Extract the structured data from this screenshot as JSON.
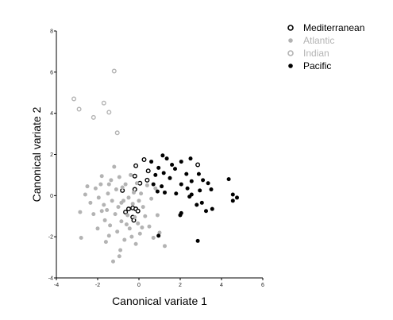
{
  "chart_data": {
    "type": "scatter",
    "xlabel": "Canonical variate 1",
    "ylabel": "Canonical variate 2",
    "xlim": [
      -4,
      6
    ],
    "ylim": [
      -4,
      8
    ],
    "xticks": [
      -4,
      -2,
      0,
      2,
      4,
      6
    ],
    "yticks": [
      -4,
      -2,
      0,
      2,
      4,
      6,
      8
    ],
    "legend_position": "top-right",
    "series": [
      {
        "name": "Mediterranean",
        "marker": "open-circle",
        "color": "#000000",
        "legend_color": "#000000",
        "points": [
          [
            0.25,
            1.75
          ],
          [
            -0.15,
            1.45
          ],
          [
            0.45,
            1.2
          ],
          [
            -0.2,
            0.95
          ],
          [
            0.4,
            0.75
          ],
          [
            0.05,
            0.6
          ],
          [
            -0.8,
            0.25
          ],
          [
            -0.2,
            0.3
          ],
          [
            2.85,
            1.5
          ],
          [
            -0.5,
            -0.65
          ],
          [
            -0.3,
            -0.6
          ],
          [
            -0.15,
            -0.65
          ],
          [
            -0.05,
            -0.75
          ],
          [
            -0.65,
            -0.8
          ],
          [
            -0.3,
            -1.05
          ],
          [
            -0.25,
            -1.2
          ]
        ]
      },
      {
        "name": "Atlantic",
        "marker": "filled-circle",
        "color": "#b3b3b3",
        "legend_color": "#b3b3b3",
        "points": [
          [
            -2.85,
            -0.8
          ],
          [
            -2.8,
            -2.05
          ],
          [
            -2.6,
            0.05
          ],
          [
            -2.35,
            -0.35
          ],
          [
            -2.2,
            -0.9
          ],
          [
            -2.1,
            0.35
          ],
          [
            -2.0,
            -1.6
          ],
          [
            -1.95,
            -0.1
          ],
          [
            -1.85,
            0.55
          ],
          [
            -1.8,
            0.95
          ],
          [
            -1.7,
            -0.45
          ],
          [
            -1.65,
            -1.2
          ],
          [
            -1.6,
            -2.25
          ],
          [
            -1.55,
            -0.7
          ],
          [
            -1.5,
            0.1
          ],
          [
            -1.45,
            0.55
          ],
          [
            -1.4,
            -1.45
          ],
          [
            -1.3,
            -0.25
          ],
          [
            -1.25,
            -3.2
          ],
          [
            -1.2,
            1.4
          ],
          [
            -1.15,
            -0.9
          ],
          [
            -1.1,
            0.3
          ],
          [
            -1.05,
            -1.75
          ],
          [
            -1.0,
            -0.55
          ],
          [
            -0.95,
            0.9
          ],
          [
            -0.9,
            -2.65
          ],
          [
            -0.85,
            -1.25
          ],
          [
            -0.8,
            0.4
          ],
          [
            -0.75,
            -0.25
          ],
          [
            -0.7,
            -2.15
          ],
          [
            -0.65,
            0.55
          ],
          [
            -0.6,
            -1.4
          ],
          [
            -0.55,
            -0.95
          ],
          [
            -0.5,
            -0.1
          ],
          [
            -0.45,
            -1.6
          ],
          [
            -0.4,
            1.0
          ],
          [
            -0.35,
            -2.0
          ],
          [
            -0.3,
            -0.4
          ],
          [
            -0.25,
            0.15
          ],
          [
            -0.2,
            -1.05
          ],
          [
            -0.15,
            -2.35
          ],
          [
            -0.1,
            0.6
          ],
          [
            -0.05,
            -1.35
          ],
          [
            0.0,
            -0.25
          ],
          [
            0.05,
            -1.85
          ],
          [
            0.1,
            0.1
          ],
          [
            0.2,
            -0.55
          ],
          [
            0.3,
            -1.0
          ],
          [
            0.4,
            0.5
          ],
          [
            0.5,
            -1.5
          ],
          [
            0.6,
            -0.15
          ],
          [
            0.7,
            -2.05
          ],
          [
            0.8,
            0.35
          ],
          [
            0.9,
            -0.95
          ],
          [
            1.0,
            -1.8
          ],
          [
            1.25,
            -2.45
          ],
          [
            -1.8,
            -0.75
          ],
          [
            -2.5,
            0.45
          ],
          [
            -1.35,
            0.75
          ],
          [
            -0.85,
            -0.35
          ],
          [
            -1.45,
            -1.95
          ],
          [
            -0.95,
            -2.95
          ],
          [
            0.15,
            -1.55
          ]
        ]
      },
      {
        "name": "Indian",
        "marker": "open-circle",
        "color": "#b3b3b3",
        "legend_color": "#b3b3b3",
        "points": [
          [
            -1.2,
            6.05
          ],
          [
            -3.15,
            4.7
          ],
          [
            -2.9,
            4.2
          ],
          [
            -1.7,
            4.5
          ],
          [
            -1.45,
            4.05
          ],
          [
            -2.2,
            3.8
          ],
          [
            -1.05,
            3.05
          ]
        ]
      },
      {
        "name": "Pacific",
        "marker": "filled-circle",
        "color": "#000000",
        "legend_color": "#000000",
        "points": [
          [
            1.15,
            1.95
          ],
          [
            1.35,
            1.8
          ],
          [
            0.6,
            1.65
          ],
          [
            1.6,
            1.5
          ],
          [
            2.05,
            1.65
          ],
          [
            2.5,
            1.8
          ],
          [
            0.95,
            1.35
          ],
          [
            1.75,
            1.3
          ],
          [
            2.3,
            1.05
          ],
          [
            2.9,
            1.05
          ],
          [
            1.2,
            1.1
          ],
          [
            0.8,
            1.0
          ],
          [
            1.5,
            0.85
          ],
          [
            2.55,
            0.7
          ],
          [
            3.1,
            0.75
          ],
          [
            4.35,
            0.8
          ],
          [
            0.7,
            0.55
          ],
          [
            1.1,
            0.45
          ],
          [
            2.05,
            0.55
          ],
          [
            3.35,
            0.6
          ],
          [
            0.9,
            0.2
          ],
          [
            1.25,
            0.15
          ],
          [
            2.35,
            0.35
          ],
          [
            2.95,
            0.25
          ],
          [
            3.5,
            0.3
          ],
          [
            1.8,
            0.1
          ],
          [
            2.55,
            0.05
          ],
          [
            4.55,
            0.05
          ],
          [
            2.45,
            -0.05
          ],
          [
            3.05,
            -0.35
          ],
          [
            4.75,
            -0.1
          ],
          [
            4.55,
            -0.25
          ],
          [
            2.8,
            -0.45
          ],
          [
            2.05,
            -0.85
          ],
          [
            2.0,
            -0.95
          ],
          [
            3.25,
            -0.75
          ],
          [
            3.55,
            -0.65
          ],
          [
            0.95,
            -1.95
          ],
          [
            2.85,
            -2.2
          ]
        ]
      }
    ]
  }
}
